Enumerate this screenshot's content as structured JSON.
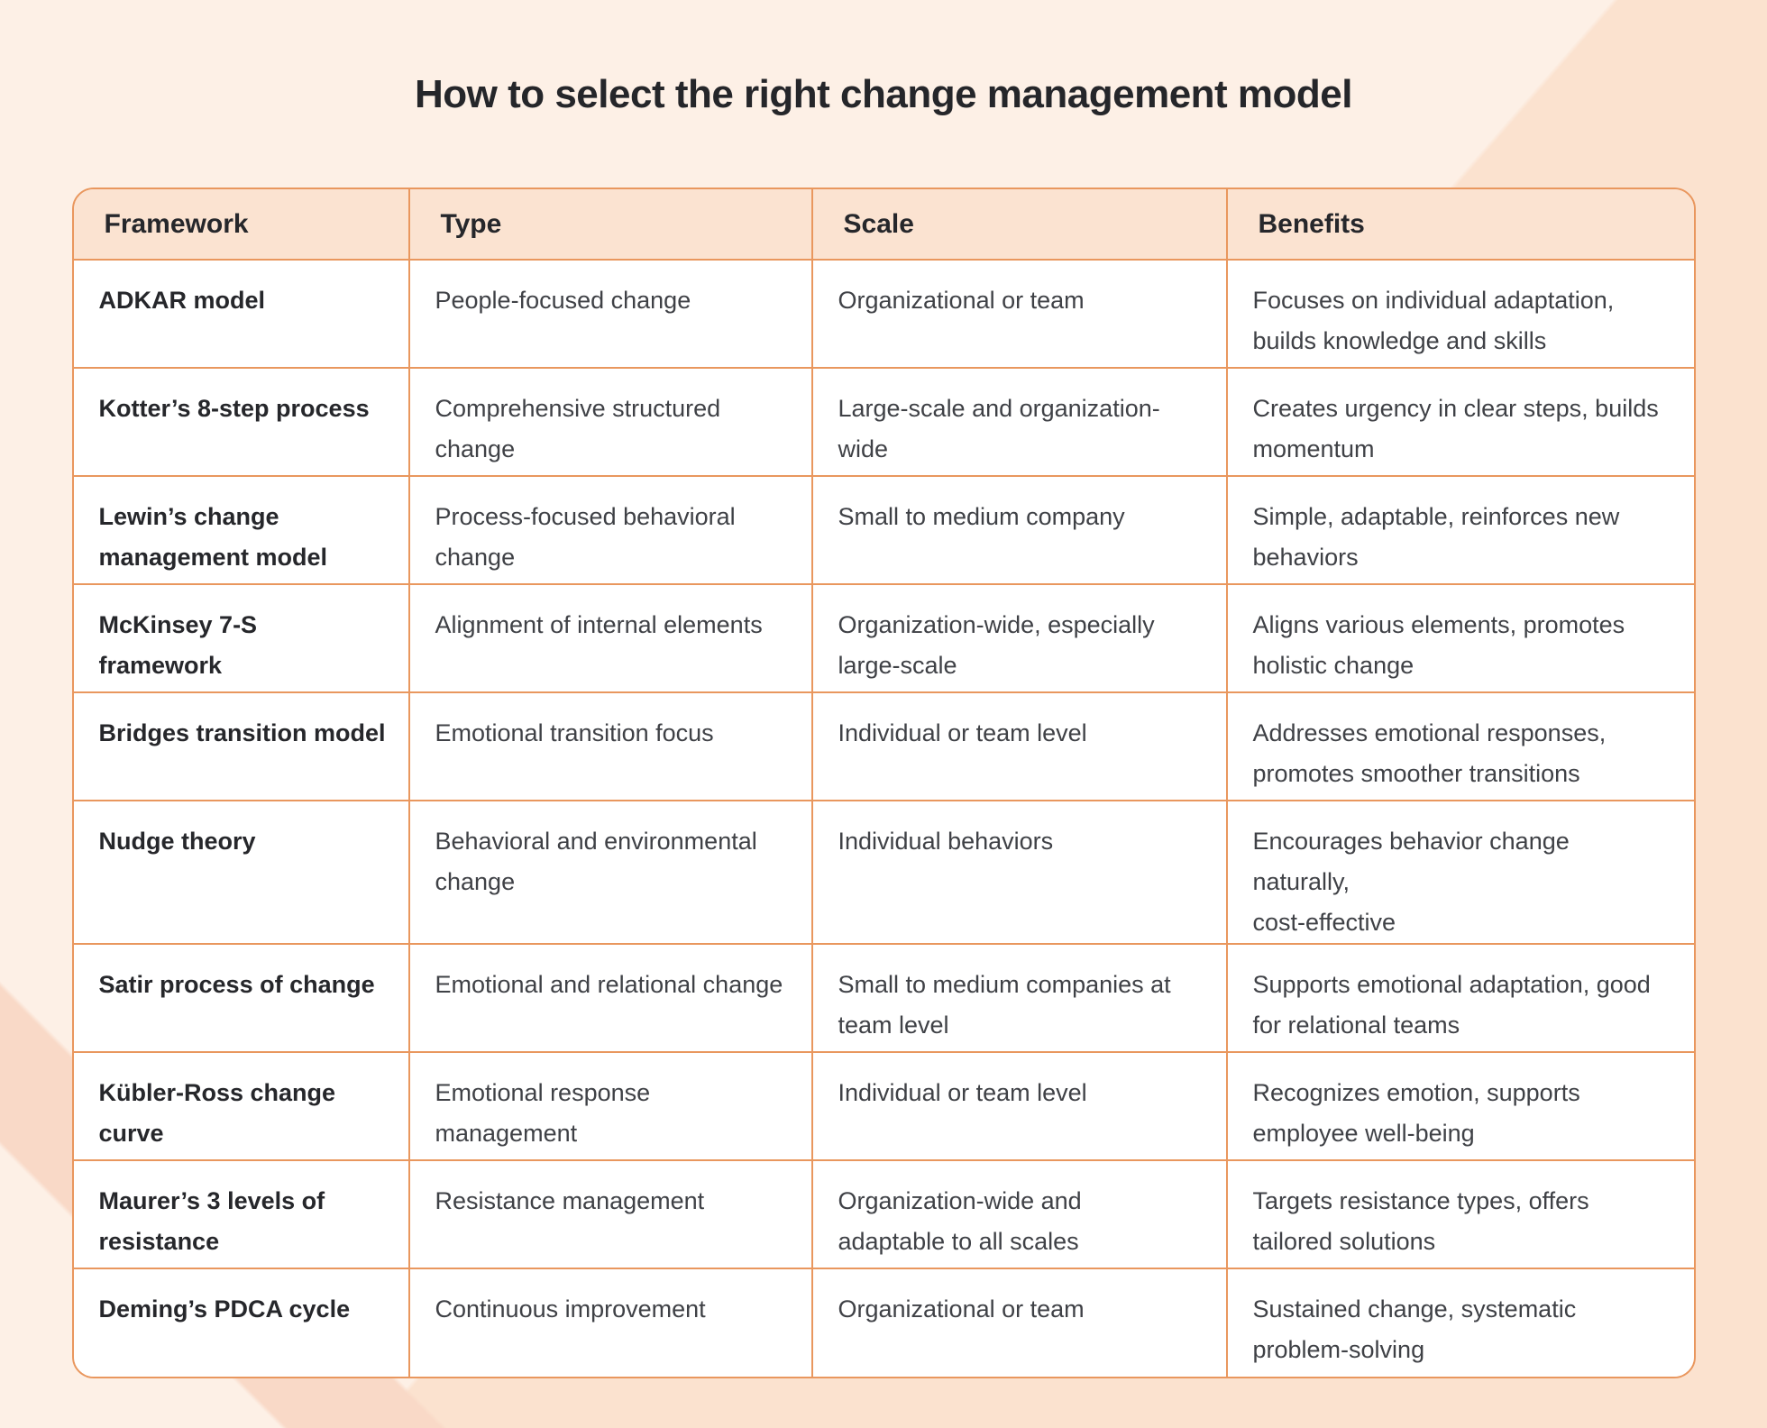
{
  "page": {
    "title": "How to select the right change management model"
  },
  "colors": {
    "page_bg": "#fbe2cf",
    "page_bg_light": "#fdf0e6",
    "corner_band": "#f9d9c7",
    "border": "#e9975e",
    "header_bg": "#fbe3d1",
    "cell_bg": "#ffffff",
    "heading_text": "#26272b",
    "body_text": "#3f4146"
  },
  "table": {
    "headers": [
      "Framework",
      "Type",
      "Scale",
      "Benefits"
    ],
    "rows": [
      {
        "framework": "ADKAR model",
        "type": "People-focused change",
        "scale": "Organizational or team",
        "benefits": "Focuses on individual adaptation,\nbuilds knowledge and skills"
      },
      {
        "framework": "Kotter’s 8-step process",
        "type": "Comprehensive structured\nchange",
        "scale": "Large-scale and organization-\nwide",
        "benefits": "Creates urgency in clear steps, builds\nmomentum"
      },
      {
        "framework": "Lewin’s change\nmanagement model",
        "type": "Process-focused behavioral\nchange",
        "scale": "Small to medium company",
        "benefits": "Simple, adaptable, reinforces new\nbehaviors"
      },
      {
        "framework": "McKinsey 7-S framework",
        "type": "Alignment of internal elements",
        "scale": "Organization-wide, especially\nlarge-scale",
        "benefits": "Aligns various elements, promotes\nholistic change"
      },
      {
        "framework": "Bridges transition model",
        "type": "Emotional transition focus",
        "scale": "Individual or team level",
        "benefits": "Addresses emotional responses,\npromotes smoother transitions"
      },
      {
        "framework": "Nudge theory",
        "type": "Behavioral and environmental\nchange",
        "scale": "Individual behaviors",
        "benefits": "Encourages behavior change naturally,\ncost-effective"
      },
      {
        "framework": "Satir process of change",
        "type": "Emotional and relational change",
        "scale": "Small to medium companies at\nteam level",
        "benefits": "Supports emotional adaptation, good\nfor relational teams"
      },
      {
        "framework": "Kübler-Ross change\ncurve",
        "type": "Emotional response\nmanagement",
        "scale": "Individual or team level",
        "benefits": "Recognizes emotion, supports\nemployee well-being"
      },
      {
        "framework": "Maurer’s 3 levels of\nresistance",
        "type": "Resistance management",
        "scale": "Organization-wide and\nadaptable to all scales",
        "benefits": "Targets resistance types, offers\ntailored solutions"
      },
      {
        "framework": "Deming’s PDCA cycle",
        "type": "Continuous improvement",
        "scale": "Organizational or team",
        "benefits": "Sustained change, systematic\nproblem-solving"
      }
    ]
  }
}
